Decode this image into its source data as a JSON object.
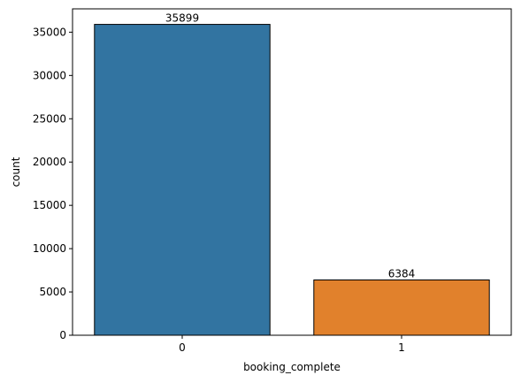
{
  "chart_data": {
    "type": "bar",
    "categories": [
      "0",
      "1"
    ],
    "values": [
      35899,
      6384
    ],
    "data_labels": [
      "35899",
      "6384"
    ],
    "colors": [
      "#3274a1",
      "#e1812c"
    ],
    "edge_color": "#000000",
    "title": "",
    "xlabel": "booking_complete",
    "ylabel": "count",
    "ylim": [
      0,
      37694
    ],
    "yticks": [
      0,
      5000,
      10000,
      15000,
      20000,
      25000,
      30000,
      35000
    ],
    "grid": false,
    "legend": "none"
  }
}
